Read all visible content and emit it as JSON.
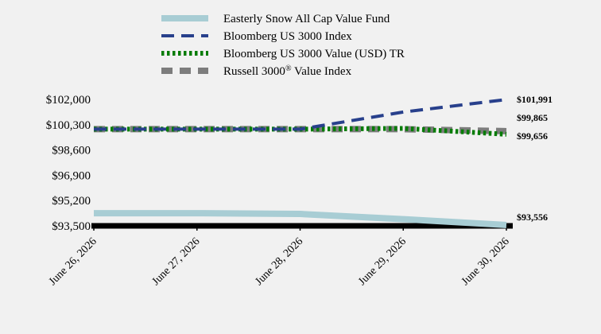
{
  "chart_data": {
    "type": "line",
    "title": "",
    "xlabel": "",
    "ylabel": "",
    "x": [
      "June 26, 2026",
      "June 27, 2026",
      "June 28, 2026",
      "June 29, 2026",
      "June 30, 2026"
    ],
    "ylim": [
      93500,
      102000
    ],
    "yticks": [
      93500,
      95200,
      96900,
      98600,
      100300,
      102000
    ],
    "ytick_labels": [
      "$93,500",
      "$95,200",
      "$96,900",
      "$98,600",
      "$100,300",
      "$102,000"
    ],
    "grid": false,
    "legend_position": "top-center",
    "series": [
      {
        "name": "Easterly Snow All Cap Value Fund",
        "color": "#a8cdd4",
        "style": "solid-thick",
        "values": [
          94350,
          94350,
          94300,
          93950,
          93556
        ],
        "end_label": "$93,556"
      },
      {
        "name": "Bloomberg US 3000 Index",
        "color": "#28408c",
        "style": "dashed",
        "values": [
          100000,
          100000,
          100000,
          101150,
          101991
        ],
        "end_label": "$101,991"
      },
      {
        "name": "Bloomberg US 3000 Value (USD) TR",
        "color": "#067c06",
        "style": "dotted",
        "values": [
          100000,
          100000,
          100000,
          100050,
          99656
        ],
        "end_label": "$99,656"
      },
      {
        "name": "Russell 3000® Value Index",
        "name_main": "Russell 3000",
        "name_sup": "®",
        "name_tail": " Value Index",
        "color": "#7d7d7d",
        "style": "dashed-thick",
        "values": [
          100000,
          100000,
          100000,
          100000,
          99865
        ],
        "end_label": "$99,865"
      }
    ]
  }
}
